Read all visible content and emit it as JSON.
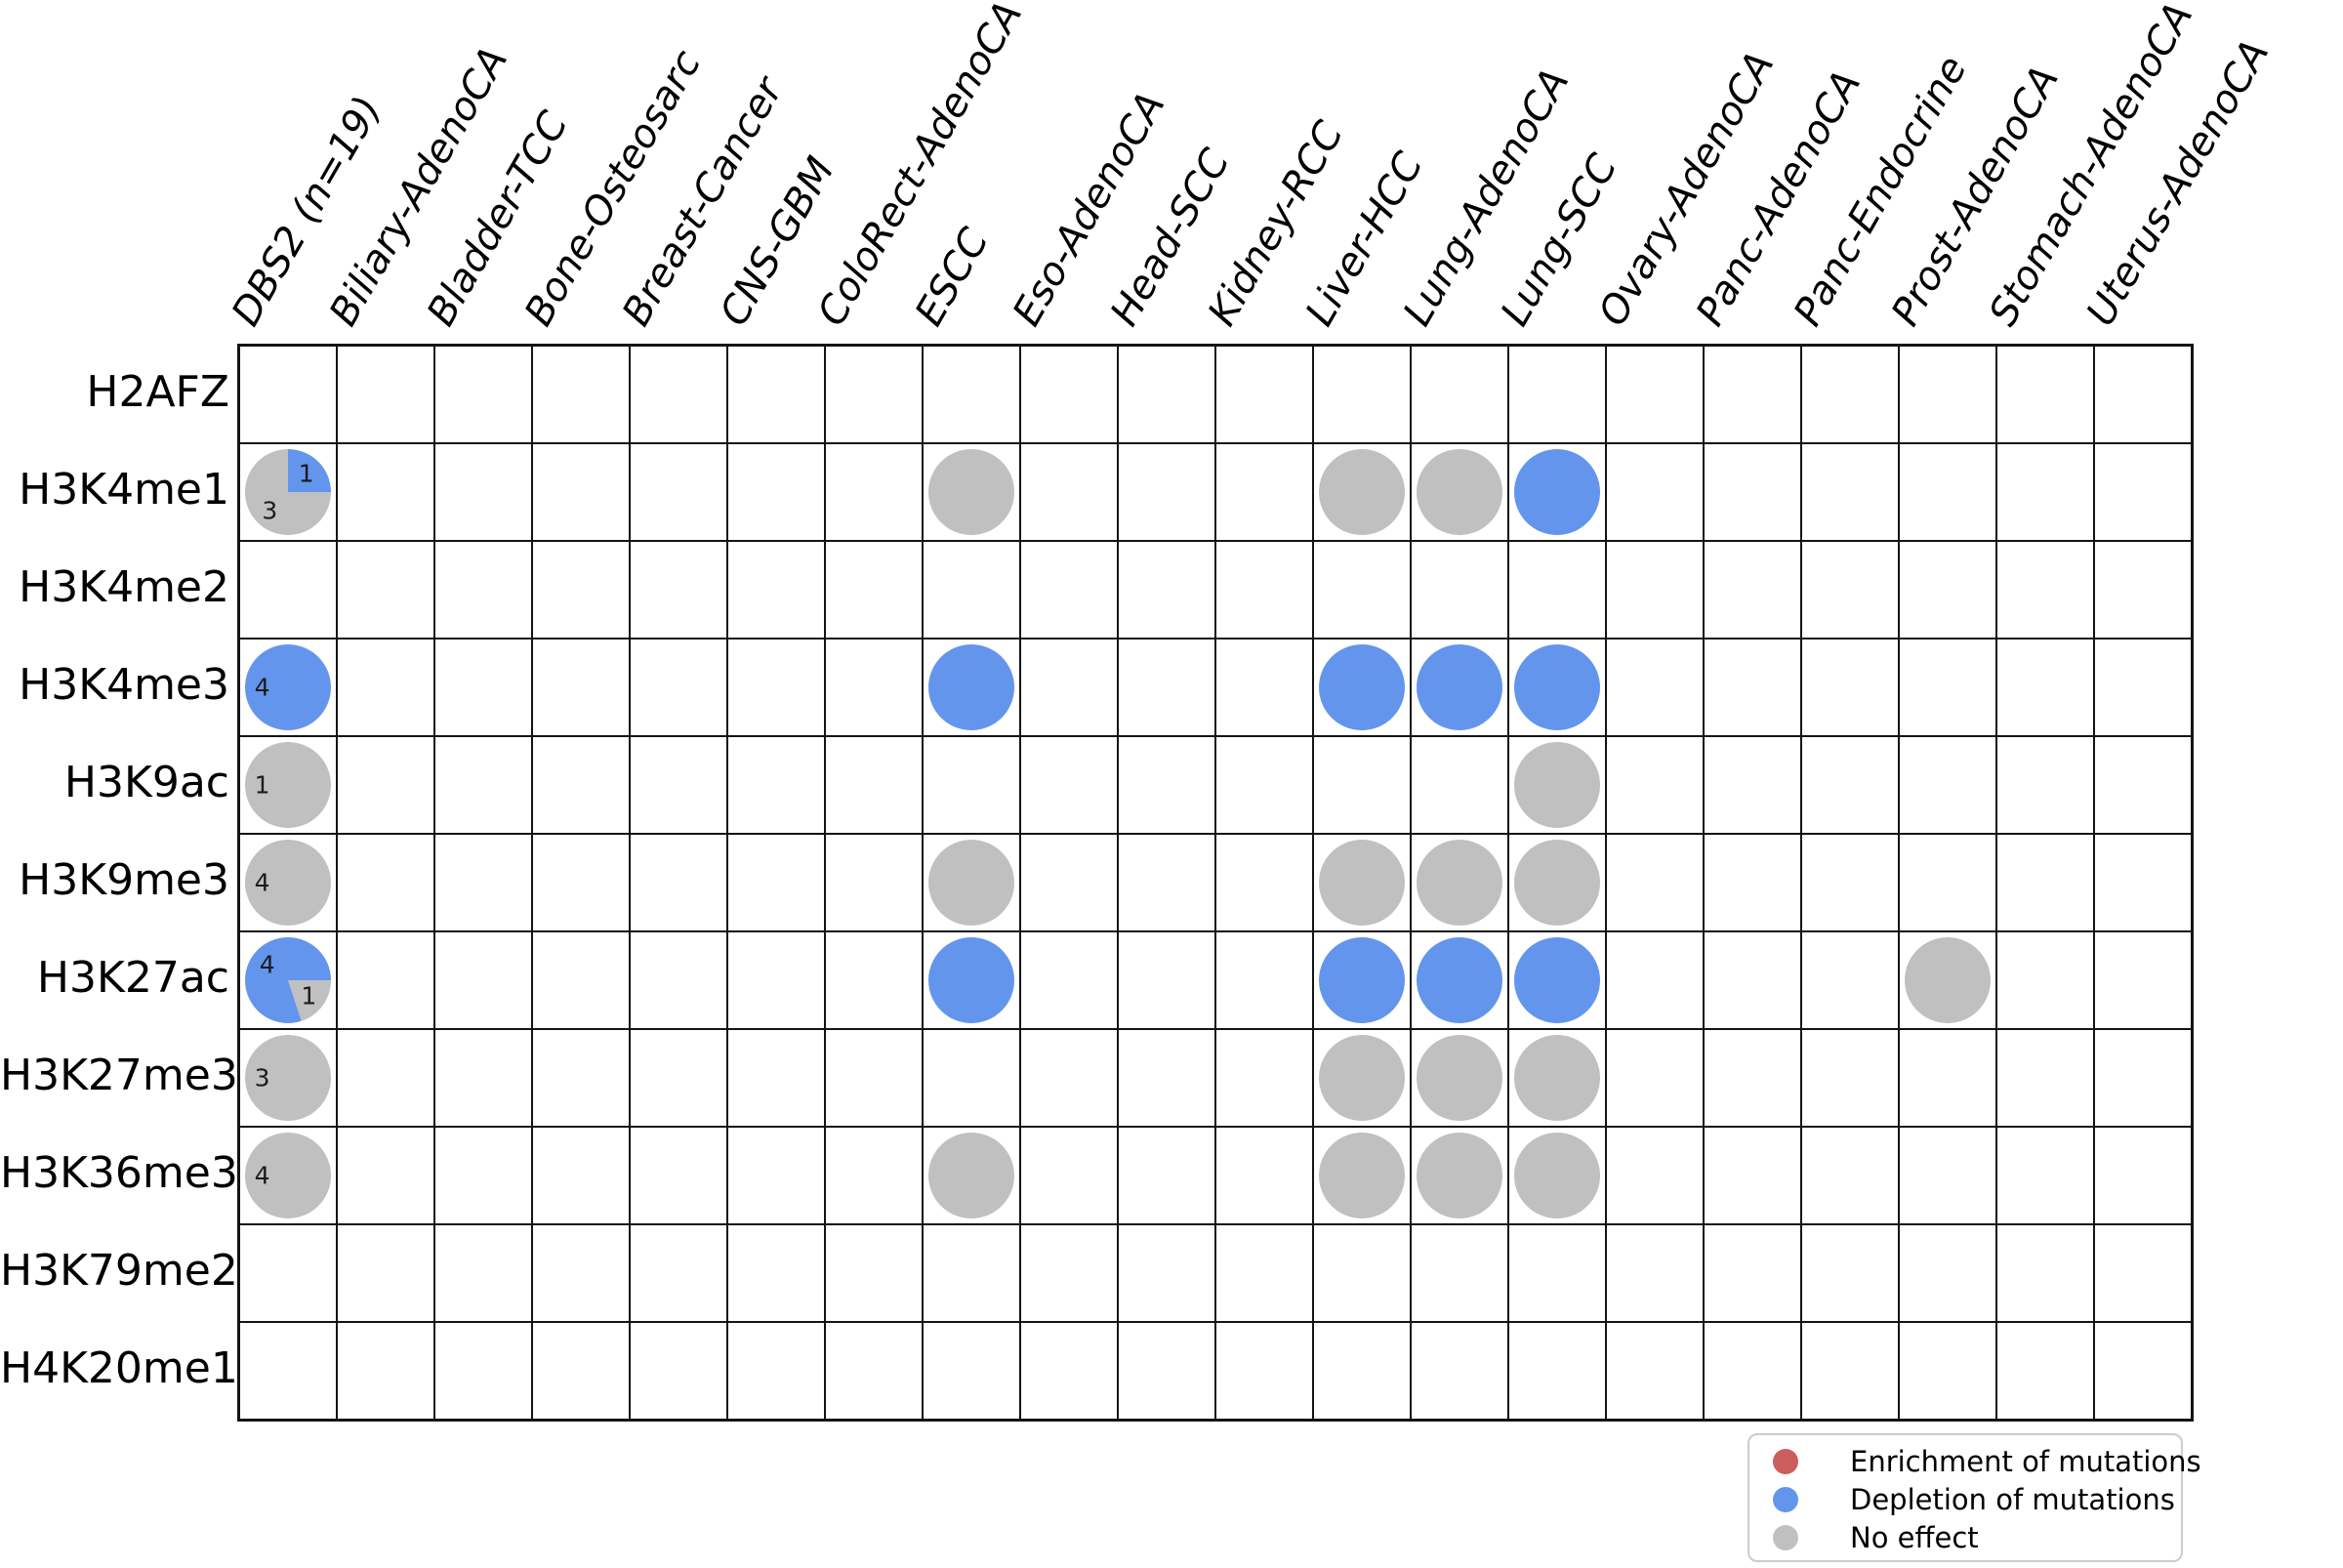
{
  "chart_data": {
    "type": "matrix-dot",
    "description": "Histone mark vs cancer type matrix; dots show effect of mutations, first column shows pie summaries with counts",
    "rows": [
      "H2AFZ",
      "H3K4me1",
      "H3K4me2",
      "H3K4me3",
      "H3K9ac",
      "H3K9me3",
      "H3K27ac",
      "H3K27me3",
      "H3K36me3",
      "H3K79me2",
      "H4K20me1"
    ],
    "columns": [
      "DBS2 (n=19)",
      "Biliary-AdenoCA",
      "Bladder-TCC",
      "Bone-Osteosarc",
      "Breast-Cancer",
      "CNS-GBM",
      "ColoRect-AdenoCA",
      "ESCC",
      "Eso-AdenoCA",
      "Head-SCC",
      "Kidney-RCC",
      "Liver-HCC",
      "Lung-AdenoCA",
      "Lung-SCC",
      "Ovary-AdenoCA",
      "Panc-AdenoCA",
      "Panc-Endocrine",
      "Prost-AdenoCA",
      "Stomach-AdenoCA",
      "Uterus-AdenoCA"
    ],
    "colors": {
      "enrichment": "#CD5C5C",
      "depletion": "#6495ED",
      "no_effect": "#C0C0C0"
    },
    "cells": [
      {
        "row": "H3K4me1",
        "col": "ESCC",
        "effect": "no_effect"
      },
      {
        "row": "H3K4me1",
        "col": "Liver-HCC",
        "effect": "no_effect"
      },
      {
        "row": "H3K4me1",
        "col": "Lung-AdenoCA",
        "effect": "no_effect"
      },
      {
        "row": "H3K4me1",
        "col": "Lung-SCC",
        "effect": "depletion"
      },
      {
        "row": "H3K4me3",
        "col": "ESCC",
        "effect": "depletion"
      },
      {
        "row": "H3K4me3",
        "col": "Liver-HCC",
        "effect": "depletion"
      },
      {
        "row": "H3K4me3",
        "col": "Lung-AdenoCA",
        "effect": "depletion"
      },
      {
        "row": "H3K4me3",
        "col": "Lung-SCC",
        "effect": "depletion"
      },
      {
        "row": "H3K9ac",
        "col": "Lung-SCC",
        "effect": "no_effect"
      },
      {
        "row": "H3K9me3",
        "col": "ESCC",
        "effect": "no_effect"
      },
      {
        "row": "H3K9me3",
        "col": "Liver-HCC",
        "effect": "no_effect"
      },
      {
        "row": "H3K9me3",
        "col": "Lung-AdenoCA",
        "effect": "no_effect"
      },
      {
        "row": "H3K9me3",
        "col": "Lung-SCC",
        "effect": "no_effect"
      },
      {
        "row": "H3K27ac",
        "col": "ESCC",
        "effect": "depletion"
      },
      {
        "row": "H3K27ac",
        "col": "Liver-HCC",
        "effect": "depletion"
      },
      {
        "row": "H3K27ac",
        "col": "Lung-AdenoCA",
        "effect": "depletion"
      },
      {
        "row": "H3K27ac",
        "col": "Lung-SCC",
        "effect": "depletion"
      },
      {
        "row": "H3K27ac",
        "col": "Prost-AdenoCA",
        "effect": "no_effect"
      },
      {
        "row": "H3K27me3",
        "col": "Liver-HCC",
        "effect": "no_effect"
      },
      {
        "row": "H3K27me3",
        "col": "Lung-AdenoCA",
        "effect": "no_effect"
      },
      {
        "row": "H3K27me3",
        "col": "Lung-SCC",
        "effect": "no_effect"
      },
      {
        "row": "H3K36me3",
        "col": "ESCC",
        "effect": "no_effect"
      },
      {
        "row": "H3K36me3",
        "col": "Liver-HCC",
        "effect": "no_effect"
      },
      {
        "row": "H3K36me3",
        "col": "Lung-AdenoCA",
        "effect": "no_effect"
      },
      {
        "row": "H3K36me3",
        "col": "Lung-SCC",
        "effect": "no_effect"
      }
    ],
    "pies": [
      {
        "row": "H3K4me1",
        "col": "DBS2 (n=19)",
        "slices": [
          {
            "effect": "depletion",
            "count": 1
          },
          {
            "effect": "no_effect",
            "count": 3
          }
        ]
      },
      {
        "row": "H3K4me3",
        "col": "DBS2 (n=19)",
        "slices": [
          {
            "effect": "depletion",
            "count": 4
          }
        ]
      },
      {
        "row": "H3K9ac",
        "col": "DBS2 (n=19)",
        "slices": [
          {
            "effect": "no_effect",
            "count": 1
          }
        ]
      },
      {
        "row": "H3K9me3",
        "col": "DBS2 (n=19)",
        "slices": [
          {
            "effect": "no_effect",
            "count": 4
          }
        ]
      },
      {
        "row": "H3K27ac",
        "col": "DBS2 (n=19)",
        "slices": [
          {
            "effect": "depletion",
            "count": 4
          },
          {
            "effect": "no_effect",
            "count": 1
          }
        ]
      },
      {
        "row": "H3K27me3",
        "col": "DBS2 (n=19)",
        "slices": [
          {
            "effect": "no_effect",
            "count": 3
          }
        ]
      },
      {
        "row": "H3K36me3",
        "col": "DBS2 (n=19)",
        "slices": [
          {
            "effect": "no_effect",
            "count": 4
          }
        ]
      }
    ],
    "legend_position": "bottom-right",
    "grid_on": true
  },
  "legend": {
    "entries": [
      {
        "label": "Enrichment of mutations",
        "effect": "enrichment"
      },
      {
        "label": "Depletion of mutations",
        "effect": "depletion"
      },
      {
        "label": "No effect",
        "effect": "no_effect"
      }
    ]
  }
}
